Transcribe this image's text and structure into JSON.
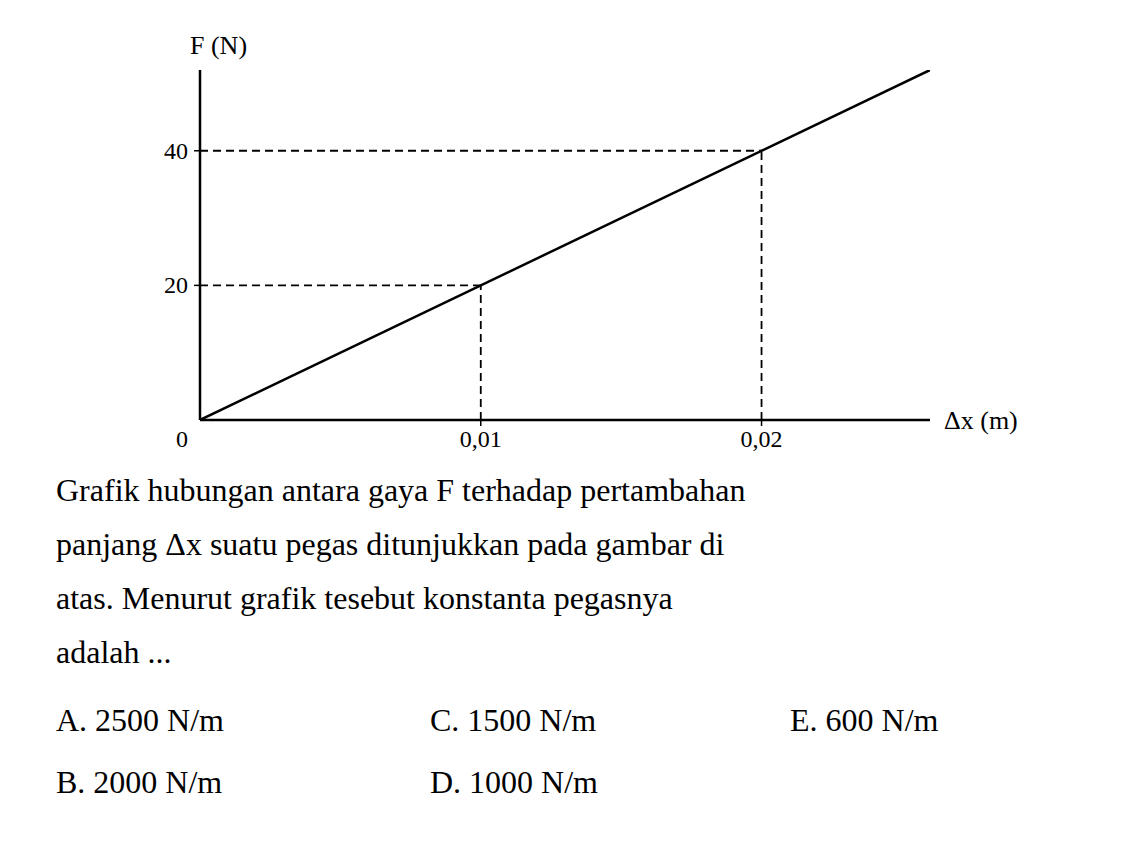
{
  "chart_data": {
    "type": "line",
    "x": [
      0,
      0.026
    ],
    "values": [
      0,
      52
    ],
    "color": "#000000",
    "xlim": [
      0,
      0.026
    ],
    "ylim": [
      0,
      52
    ],
    "xticks": [
      {
        "value": 0.01,
        "label": "0,01"
      },
      {
        "value": 0.02,
        "label": "0,02"
      }
    ],
    "yticks": [
      20,
      40
    ],
    "origin_label": "0",
    "x_label": "Δx (m)",
    "y_label": "F (N)",
    "grid": false,
    "reference_points": [
      {
        "x": 0.01,
        "y": 20
      },
      {
        "x": 0.02,
        "y": 40
      }
    ],
    "question_lines": [
      "Grafik hubungan antara gaya F terhadap pertambahan",
      "panjang Δx suatu pegas ditunjukkan pada gambar di",
      "atas. Menurut grafik tesebut konstanta pegasnya",
      "adalah ..."
    ],
    "options": [
      [
        "A. 2500 N/m",
        "C. 1500 N/m",
        "E. 600 N/m"
      ],
      [
        "B. 2000 N/m",
        "D. 1000 N/m"
      ]
    ]
  }
}
